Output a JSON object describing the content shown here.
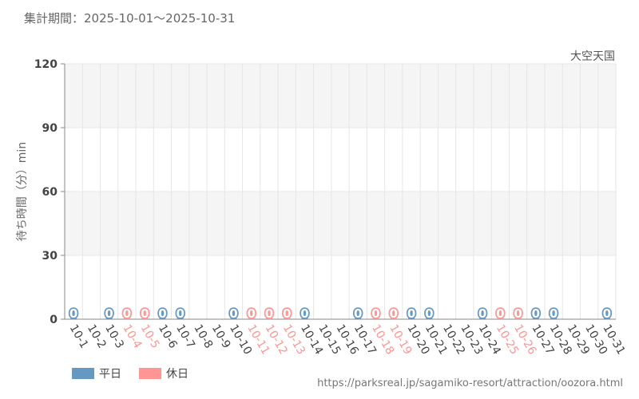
{
  "header": {
    "period": "集計期間：2025-10-01～2025-10-31",
    "attraction": "大空天国"
  },
  "legend": {
    "weekday_label": "平日",
    "holiday_label": "休日"
  },
  "source_url": "https://parksreal.jp/sagamiko-resort/attraction/oozora.html",
  "colors": {
    "weekday": "#6699c2",
    "holiday": "#ff9595",
    "band": "#f5f5f5",
    "grid": "#e6e6e6",
    "axis": "#888888"
  },
  "chart_data": {
    "type": "bar",
    "xlabel": "",
    "ylabel": "待ち時間（分）min",
    "ylim": [
      0,
      120
    ],
    "yticks": [
      0,
      30,
      60,
      90,
      120
    ],
    "grid": true,
    "legend_position": "bottom-left",
    "categories": [
      "10-1",
      "10-2",
      "10-3",
      "10-4",
      "10-5",
      "10-6",
      "10-7",
      "10-8",
      "10-9",
      "10-10",
      "10-11",
      "10-12",
      "10-13",
      "10-14",
      "10-15",
      "10-16",
      "10-17",
      "10-18",
      "10-19",
      "10-20",
      "10-21",
      "10-22",
      "10-23",
      "10-24",
      "10-25",
      "10-26",
      "10-27",
      "10-28",
      "10-29",
      "10-30",
      "10-31"
    ],
    "day_type": [
      "weekday",
      "weekday",
      "weekday",
      "holiday",
      "holiday",
      "weekday",
      "weekday",
      "weekday",
      "weekday",
      "weekday",
      "holiday",
      "holiday",
      "holiday",
      "weekday",
      "weekday",
      "weekday",
      "weekday",
      "holiday",
      "holiday",
      "weekday",
      "weekday",
      "weekday",
      "weekday",
      "weekday",
      "holiday",
      "holiday",
      "weekday",
      "weekday",
      "weekday",
      "weekday",
      "weekday"
    ],
    "values": [
      0,
      null,
      0,
      0,
      0,
      0,
      0,
      null,
      null,
      0,
      0,
      0,
      0,
      0,
      null,
      null,
      0,
      0,
      0,
      0,
      0,
      null,
      null,
      0,
      0,
      0,
      0,
      0,
      null,
      null,
      0
    ],
    "data_labels": [
      "0",
      "",
      "0",
      "0",
      "0",
      "0",
      "0",
      "",
      "",
      "0",
      "0",
      "0",
      "0",
      "0",
      "",
      "",
      "0",
      "0",
      "0",
      "0",
      "0",
      "",
      "",
      "0",
      "0",
      "0",
      "0",
      "0",
      "",
      "",
      "0"
    ],
    "series": [
      {
        "name": "平日",
        "day_type": "weekday"
      },
      {
        "name": "休日",
        "day_type": "holiday"
      }
    ]
  }
}
